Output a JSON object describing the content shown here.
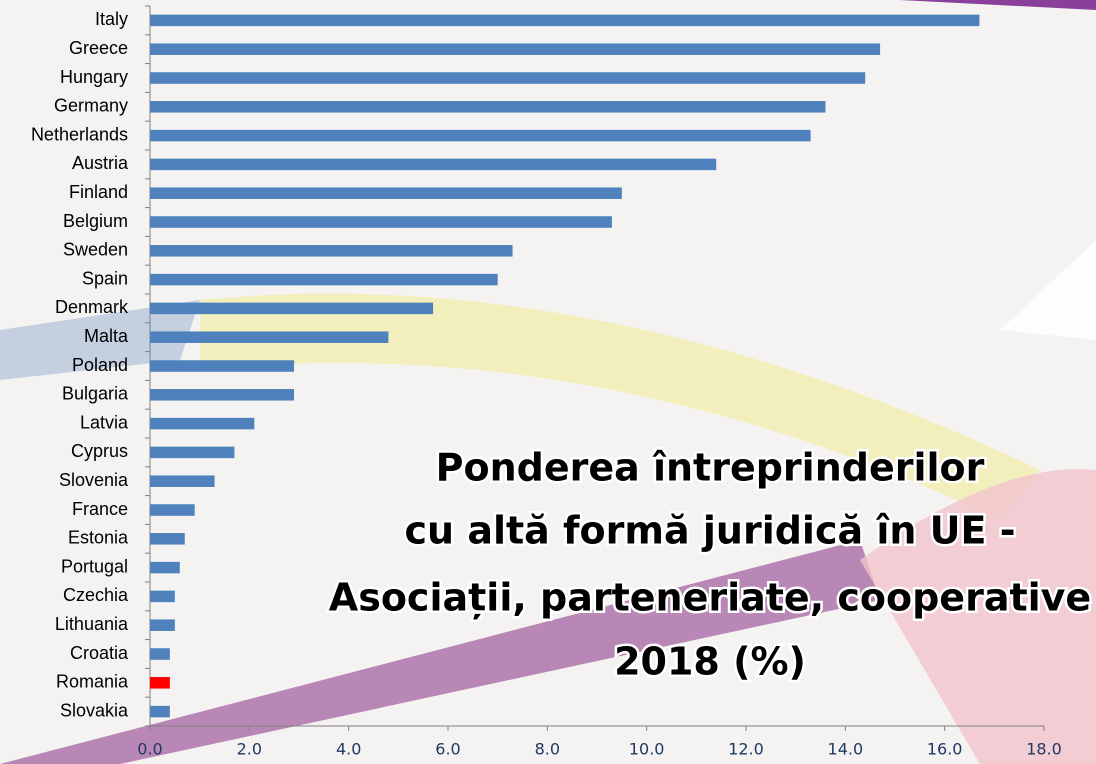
{
  "chart_data": {
    "type": "barh",
    "title": [
      "Ponderea întreprinderilor",
      "cu altă formă juridică în UE -",
      "Asociații, parteneriate, cooperative",
      "2018 (%)"
    ],
    "categories": [
      "Italy",
      "Greece",
      "Hungary",
      "Germany",
      "Netherlands",
      "Austria",
      "Finland",
      "Belgium",
      "Sweden",
      "Spain",
      "Denmark",
      "Malta",
      "Poland",
      "Bulgaria",
      "Latvia",
      "Cyprus",
      "Slovenia",
      "France",
      "Estonia",
      "Portugal",
      "Czechia",
      "Lithuania",
      "Croatia",
      "Romania",
      "Slovakia"
    ],
    "values": [
      16.7,
      14.7,
      14.4,
      13.6,
      13.3,
      11.4,
      9.5,
      9.3,
      7.3,
      7.0,
      5.7,
      4.8,
      2.9,
      2.9,
      2.1,
      1.7,
      1.3,
      0.9,
      0.7,
      0.6,
      0.5,
      0.5,
      0.4,
      0.4,
      0.4
    ],
    "colors": [
      "#4f81bd",
      "#4f81bd",
      "#4f81bd",
      "#4f81bd",
      "#4f81bd",
      "#4f81bd",
      "#4f81bd",
      "#4f81bd",
      "#4f81bd",
      "#4f81bd",
      "#4f81bd",
      "#4f81bd",
      "#4f81bd",
      "#4f81bd",
      "#4f81bd",
      "#4f81bd",
      "#4f81bd",
      "#4f81bd",
      "#4f81bd",
      "#4f81bd",
      "#4f81bd",
      "#4f81bd",
      "#4f81bd",
      "#ff0000",
      "#4f81bd"
    ],
    "xlim": [
      0,
      18
    ],
    "xticks": [
      {
        "value": 0,
        "label": "0.0"
      },
      {
        "value": 2,
        "label": "2.0"
      },
      {
        "value": 4,
        "label": "4.0"
      },
      {
        "value": 6,
        "label": "6.0"
      },
      {
        "value": 8,
        "label": "8.0"
      },
      {
        "value": 10,
        "label": "10.0"
      },
      {
        "value": 12,
        "label": "12.0"
      },
      {
        "value": 14,
        "label": "14.0"
      },
      {
        "value": 16,
        "label": "16.0"
      },
      {
        "value": 18,
        "label": "18.0"
      }
    ]
  }
}
